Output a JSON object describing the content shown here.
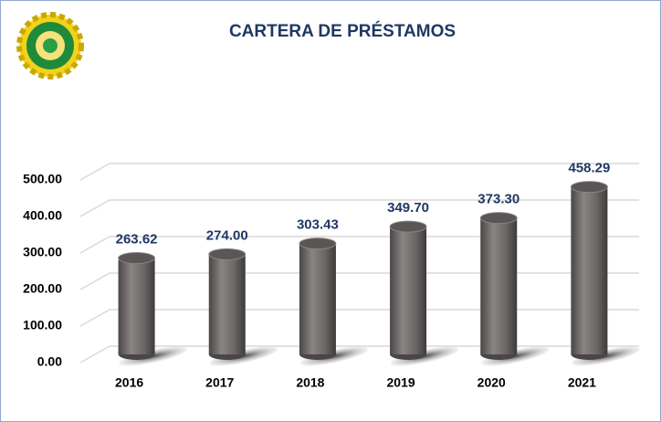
{
  "chart_data": {
    "type": "bar",
    "title": "CARTERA DE PRÉSTAMOS",
    "categories": [
      "2016",
      "2017",
      "2018",
      "2019",
      "2020",
      "2021"
    ],
    "values": [
      263.62,
      274.0,
      303.43,
      349.7,
      373.3,
      458.29
    ],
    "value_labels": [
      "263.62",
      "274.00",
      "303.43",
      "349.70",
      "373.30",
      "458.29"
    ],
    "color": "#6b6767",
    "ylim": [
      0,
      500
    ],
    "yticks": [
      {
        "value": 0,
        "label": "0.00"
      },
      {
        "value": 100,
        "label": "100.00"
      },
      {
        "value": 200,
        "label": "200.00"
      },
      {
        "value": 300,
        "label": "300.00"
      },
      {
        "value": 400,
        "label": "400.00"
      },
      {
        "value": 500,
        "label": "500.00"
      }
    ],
    "grid": true
  }
}
